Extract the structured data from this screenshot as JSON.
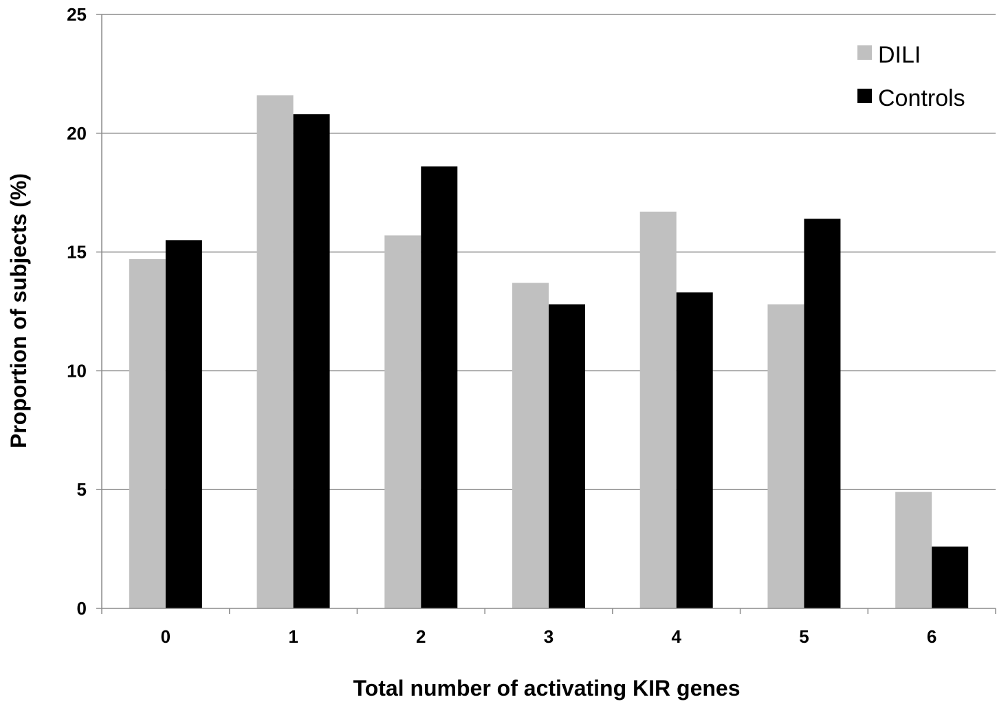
{
  "chart_data": {
    "type": "bar",
    "categories": [
      "0",
      "1",
      "2",
      "3",
      "4",
      "5",
      "6"
    ],
    "series": [
      {
        "name": "DILI",
        "color": "#c0c0c0",
        "values": [
          14.7,
          21.6,
          15.7,
          13.7,
          16.7,
          12.8,
          4.9
        ]
      },
      {
        "name": "Controls",
        "color": "#000000",
        "values": [
          15.5,
          20.8,
          18.6,
          12.8,
          13.3,
          16.4,
          2.6
        ]
      }
    ],
    "xlabel": "Total number of activating KIR genes",
    "ylabel": "Proportion of subjects (%)",
    "ylim": [
      0,
      25
    ],
    "yticks": [
      "0",
      "5",
      "10",
      "15",
      "20",
      "25"
    ],
    "grid": true,
    "legend_position": "top-right"
  }
}
